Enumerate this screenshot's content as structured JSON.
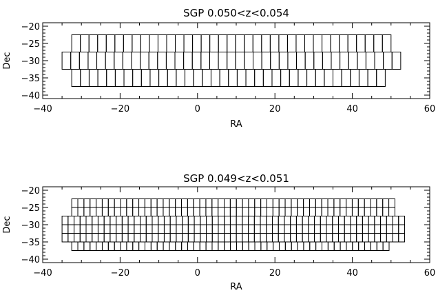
{
  "chart_data": [
    {
      "type": "grid-cells",
      "title": "SGP 0.050<z<0.054",
      "xlabel": "RA",
      "ylabel": "Dec",
      "xlim": [
        -40,
        60
      ],
      "ylim": [
        -41,
        -19
      ],
      "x_ticks": [
        -40,
        -20,
        0,
        20,
        40,
        60
      ],
      "y_ticks": [
        -20,
        -25,
        -30,
        -35,
        -40
      ],
      "rows": [
        {
          "dec_top": -22.5,
          "dec_bottom": -27.5,
          "ra_start": -32.5,
          "ra_end": 50.0,
          "n_cells": 37
        },
        {
          "dec_top": -27.5,
          "dec_bottom": -32.5,
          "ra_start": -35.0,
          "ra_end": 52.5,
          "n_cells": 39
        },
        {
          "dec_top": -32.5,
          "dec_bottom": -37.5,
          "ra_start": -32.5,
          "ra_end": 48.5,
          "n_cells": 36
        }
      ]
    },
    {
      "type": "grid-cells",
      "title": "SGP 0.049<z<0.051",
      "xlabel": "RA",
      "ylabel": "Dec",
      "xlim": [
        -40,
        60
      ],
      "ylim": [
        -41,
        -19
      ],
      "x_ticks": [
        -40,
        -20,
        0,
        20,
        40,
        60
      ],
      "y_ticks": [
        -20,
        -25,
        -30,
        -35,
        -40
      ],
      "rows": [
        {
          "dec_top": -22.5,
          "dec_bottom": -25.0,
          "ra_start": -32.5,
          "ra_end": 51.0,
          "n_cells": 53
        },
        {
          "dec_top": -25.0,
          "dec_bottom": -27.5,
          "ra_start": -32.5,
          "ra_end": 51.0,
          "n_cells": 53
        },
        {
          "dec_top": -27.5,
          "dec_bottom": -30.0,
          "ra_start": -35.0,
          "ra_end": 53.5,
          "n_cells": 57
        },
        {
          "dec_top": -30.0,
          "dec_bottom": -32.5,
          "ra_start": -35.0,
          "ra_end": 53.5,
          "n_cells": 57
        },
        {
          "dec_top": -32.5,
          "dec_bottom": -35.0,
          "ra_start": -35.0,
          "ra_end": 53.5,
          "n_cells": 57
        },
        {
          "dec_top": -35.0,
          "dec_bottom": -37.5,
          "ra_start": -32.5,
          "ra_end": 49.5,
          "n_cells": 52
        }
      ]
    }
  ]
}
